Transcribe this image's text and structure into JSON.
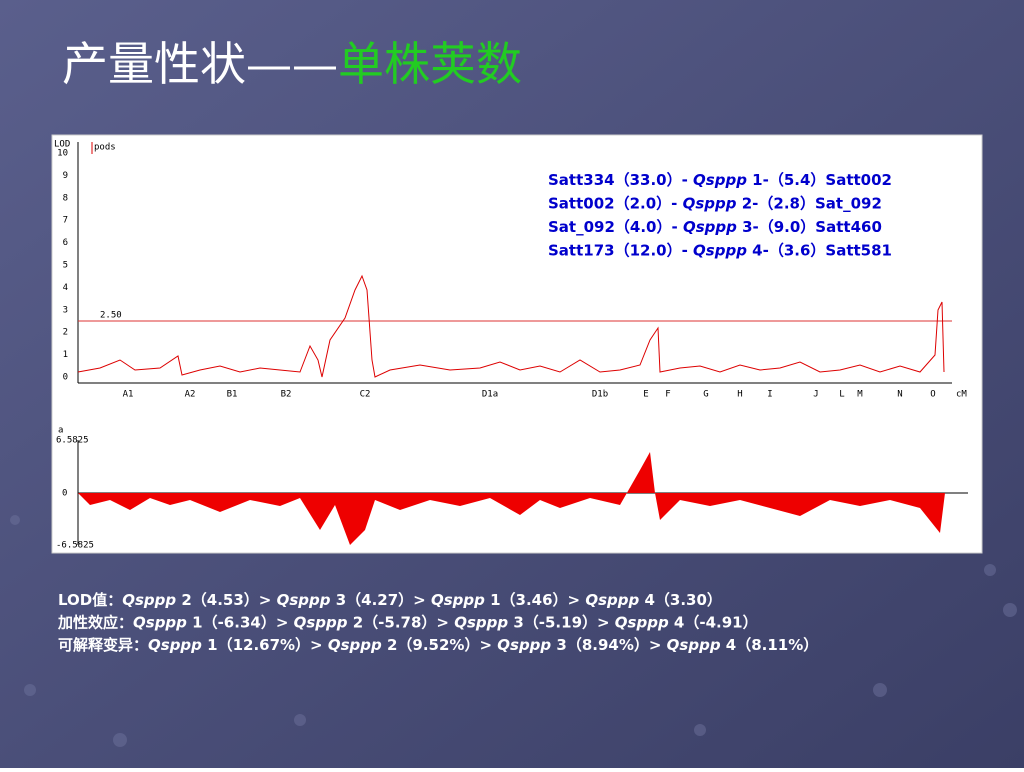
{
  "title": {
    "main": "产量性状——",
    "highlight": "单株荚数"
  },
  "figure": {
    "lod_axis_label": "LOD",
    "legend": "pods",
    "lod_ticks": [
      "10",
      "9",
      "8",
      "7",
      "6",
      "5",
      "4",
      "3",
      "2",
      "1",
      "0"
    ],
    "threshold": "2.50",
    "chromosomes": [
      "A1",
      "A2",
      "B1",
      "B2",
      "C2",
      "D1a",
      "D1b",
      "E",
      "F",
      "G",
      "H",
      "I",
      "J",
      "L",
      "M",
      "N",
      "O"
    ],
    "unit": "cM",
    "effect_axis_label": "a",
    "effect_ticks": [
      "6.5825",
      "0",
      "-6.5825"
    ],
    "annotations": [
      [
        "Satt334（33.0）- ",
        "Qsppp",
        " 1-（5.4）Satt002"
      ],
      [
        "Satt002（2.0）- ",
        "Qsppp",
        " 2-（2.8）Sat_092"
      ],
      [
        "Sat_092（4.0）- ",
        "Qsppp",
        " 3-（9.0）Satt460"
      ],
      [
        "Satt173（12.0）- ",
        "Qsppp",
        " 4-（3.6）Satt581"
      ]
    ]
  },
  "summary": [
    [
      "LOD值：",
      "Qsppp",
      " 2（4.53）> ",
      "Qsppp",
      " 3（4.27）> ",
      "Qsppp",
      " 1（3.46）> ",
      "Qsppp",
      " 4（3.30）"
    ],
    [
      "加性效应：",
      "Qsppp",
      " 1（-6.34）> ",
      "Qsppp",
      " 2（-5.78）> ",
      "Qsppp",
      " 3（-5.19）> ",
      "Qsppp",
      " 4（-4.91）"
    ],
    [
      "可解释变异：",
      "Qsppp",
      " 1（12.67%）> ",
      "Qsppp",
      " 2（9.52%）> ",
      "Qsppp",
      " 3（8.94%）> ",
      "Qsppp",
      " 4（8.11%）"
    ]
  ]
}
